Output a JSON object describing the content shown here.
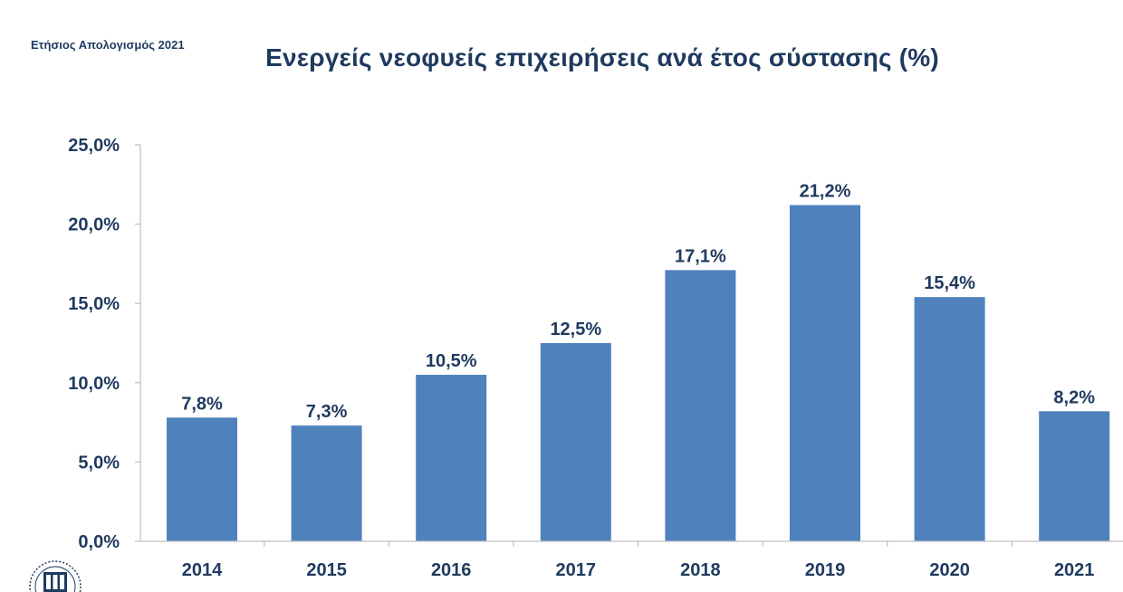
{
  "header": {
    "report_label": "Ετήσιος Απολογισμός 2021",
    "title": "Ενεργείς νεοφυείς επιχειρήσεις ανά έτος σύστασης (%)"
  },
  "chart_data": {
    "type": "bar",
    "title": "Ενεργείς νεοφυείς επιχειρήσεις ανά έτος σύστασης (%)",
    "categories": [
      "2014",
      "2015",
      "2016",
      "2017",
      "2018",
      "2019",
      "2020",
      "2021"
    ],
    "values": [
      7.8,
      7.3,
      10.5,
      12.5,
      17.1,
      21.2,
      15.4,
      8.2
    ],
    "value_labels": [
      "7,8%",
      "7,3%",
      "10,5%",
      "12,5%",
      "17,1%",
      "21,2%",
      "15,4%",
      "8,2%"
    ],
    "yticks": [
      0,
      5,
      10,
      15,
      20,
      25
    ],
    "ytick_labels": [
      "0,0%",
      "5,0%",
      "10,0%",
      "15,0%",
      "20,0%",
      "25,0%"
    ],
    "ylim": [
      0,
      25
    ],
    "xlabel": "",
    "ylabel": "",
    "grid": false,
    "legend": "none",
    "bar_color": "#4f81bd",
    "text_color": "#1f3a5f"
  }
}
